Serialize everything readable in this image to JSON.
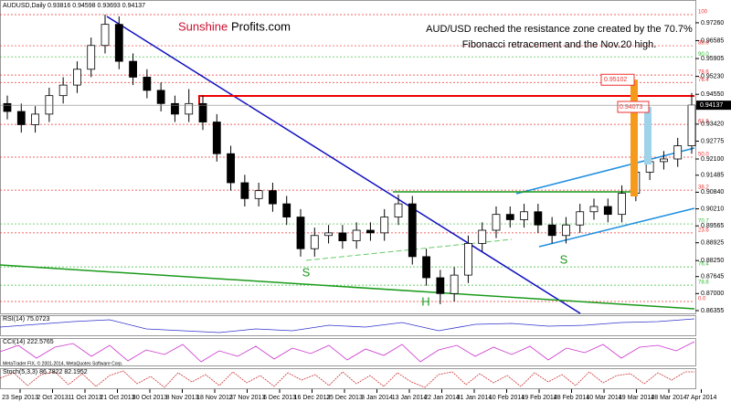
{
  "chart_data": {
    "type": "candlestick",
    "header": "AUDUSD,Daily 0.93816 0.94598 0.93693 0.94137",
    "brand_red": "Sunshine",
    "brand_dark": "Profits.com",
    "annotation": [
      "AUD/USD reched the resistance zone created by the 70.7%",
      "Fibonacci retracement and the Nov.20 high."
    ],
    "pattern_labels": [
      "S",
      "H",
      "S"
    ],
    "box_labels": [
      0.95102,
      0.94073
    ],
    "last_price": 0.94137,
    "ylim": [
      0.8625,
      0.9795
    ],
    "yticks": [
      {
        "value": 0.9726,
        "label": "0.97260"
      },
      {
        "value": 0.96585,
        "label": "0.96585"
      },
      {
        "value": 0.95905,
        "label": "0.95905"
      },
      {
        "value": 0.9523,
        "label": "0.95230"
      },
      {
        "value": 0.9455,
        "label": "0.94550"
      },
      {
        "value": 0.9342,
        "label": "0.93420"
      },
      {
        "value": 0.92775,
        "label": "0.92775"
      },
      {
        "value": 0.921,
        "label": "0.92100"
      },
      {
        "value": 0.91485,
        "label": "0.91485"
      },
      {
        "value": 0.9084,
        "label": "0.90840"
      },
      {
        "value": 0.9021,
        "label": "0.90210"
      },
      {
        "value": 0.89565,
        "label": "0.89565"
      },
      {
        "value": 0.88925,
        "label": "0.88925"
      },
      {
        "value": 0.8825,
        "label": "0.88250"
      },
      {
        "value": 0.87645,
        "label": "0.87645"
      },
      {
        "value": 0.87,
        "label": "0.87000"
      },
      {
        "value": 0.86355,
        "label": "0.86355"
      }
    ],
    "fib_red": [
      {
        "value": 0.9757,
        "label": "100"
      },
      {
        "value": 0.9639,
        "label": "88.6"
      },
      {
        "value": 0.9528,
        "label": "78.6"
      },
      {
        "value": 0.95,
        "label": "76.4"
      },
      {
        "value": 0.9341,
        "label": "61.8"
      },
      {
        "value": 0.9217,
        "label": "50.0"
      },
      {
        "value": 0.9092,
        "label": "38.2"
      },
      {
        "value": 0.893,
        "label": "23.6"
      },
      {
        "value": 0.867,
        "label": "0.0"
      }
    ],
    "fib_green": [
      {
        "value": 0.9597,
        "label": "90.0"
      },
      {
        "value": 0.8964,
        "label": "70.7"
      },
      {
        "value": 0.8801,
        "label": "76.4"
      },
      {
        "value": 0.8732,
        "label": "78.6"
      }
    ],
    "x_labels": [
      "23 Sep 2013",
      "2 Oct 2013",
      "11 Oct 2013",
      "21 Oct 2013",
      "30 Oct 2013",
      "8 Nov 2013",
      "18 Nov 2013",
      "27 Nov 2013",
      "6 Dec 2013",
      "16 Dec 2013",
      "25 Dec 2013",
      "3 Jan 2014",
      "13 Jan 2014",
      "22 Jan 2014",
      "31 Jan 2014",
      "10 Feb 2014",
      "19 Feb 2014",
      "28 Feb 2014",
      "10 Mar 2014",
      "19 Mar 2014",
      "28 Mar 2014",
      "7 Apr 2014"
    ],
    "open": [
      0.942,
      0.939,
      0.934,
      0.938,
      0.945,
      0.949,
      0.955,
      0.964,
      0.972,
      0.958,
      0.952,
      0.947,
      0.942,
      0.938,
      0.942,
      0.935,
      0.923,
      0.912,
      0.906,
      0.909,
      0.904,
      0.899,
      0.887,
      0.892,
      0.893,
      0.89,
      0.894,
      0.893,
      0.899,
      0.904,
      0.884,
      0.876,
      0.87,
      0.877,
      0.889,
      0.894,
      0.9,
      0.898,
      0.901,
      0.896,
      0.892,
      0.896,
      0.901,
      0.903,
      0.9,
      0.908,
      0.916,
      0.92,
      0.921,
      0.926
    ],
    "high": [
      0.945,
      0.942,
      0.941,
      0.948,
      0.952,
      0.958,
      0.967,
      0.9757,
      0.975,
      0.961,
      0.955,
      0.95,
      0.945,
      0.9475,
      0.945,
      0.938,
      0.926,
      0.915,
      0.912,
      0.912,
      0.907,
      0.902,
      0.895,
      0.896,
      0.896,
      0.897,
      0.897,
      0.902,
      0.9075,
      0.907,
      0.887,
      0.879,
      0.88,
      0.892,
      0.897,
      0.903,
      0.903,
      0.904,
      0.904,
      0.899,
      0.899,
      0.904,
      0.906,
      0.906,
      0.911,
      0.919,
      0.923,
      0.924,
      0.929,
      0.946
    ],
    "low": [
      0.936,
      0.931,
      0.931,
      0.935,
      0.942,
      0.946,
      0.952,
      0.961,
      0.955,
      0.949,
      0.944,
      0.939,
      0.935,
      0.935,
      0.932,
      0.92,
      0.909,
      0.903,
      0.903,
      0.901,
      0.896,
      0.884,
      0.884,
      0.889,
      0.887,
      0.887,
      0.89,
      0.89,
      0.896,
      0.881,
      0.873,
      0.866,
      0.867,
      0.874,
      0.886,
      0.891,
      0.895,
      0.895,
      0.893,
      0.889,
      0.889,
      0.893,
      0.898,
      0.897,
      0.897,
      0.905,
      0.913,
      0.917,
      0.918,
      0.923
    ],
    "close": [
      0.939,
      0.934,
      0.938,
      0.945,
      0.949,
      0.955,
      0.964,
      0.972,
      0.958,
      0.952,
      0.947,
      0.942,
      0.938,
      0.942,
      0.935,
      0.923,
      0.912,
      0.906,
      0.909,
      0.904,
      0.899,
      0.887,
      0.892,
      0.893,
      0.89,
      0.894,
      0.893,
      0.899,
      0.904,
      0.884,
      0.876,
      0.87,
      0.877,
      0.889,
      0.894,
      0.9,
      0.898,
      0.901,
      0.896,
      0.892,
      0.896,
      0.901,
      0.903,
      0.9,
      0.908,
      0.916,
      0.92,
      0.921,
      0.926,
      0.9414
    ],
    "rsi_label": "RSI(14) 75.0723",
    "cci_label": "CCI(14) 222.5765",
    "stoch_label": "Stoch(5,3,3) 86.7822 82.1952",
    "copyright": "MetaTrader FIX, © 2001-2014, MetaQuotes Software Corp."
  }
}
